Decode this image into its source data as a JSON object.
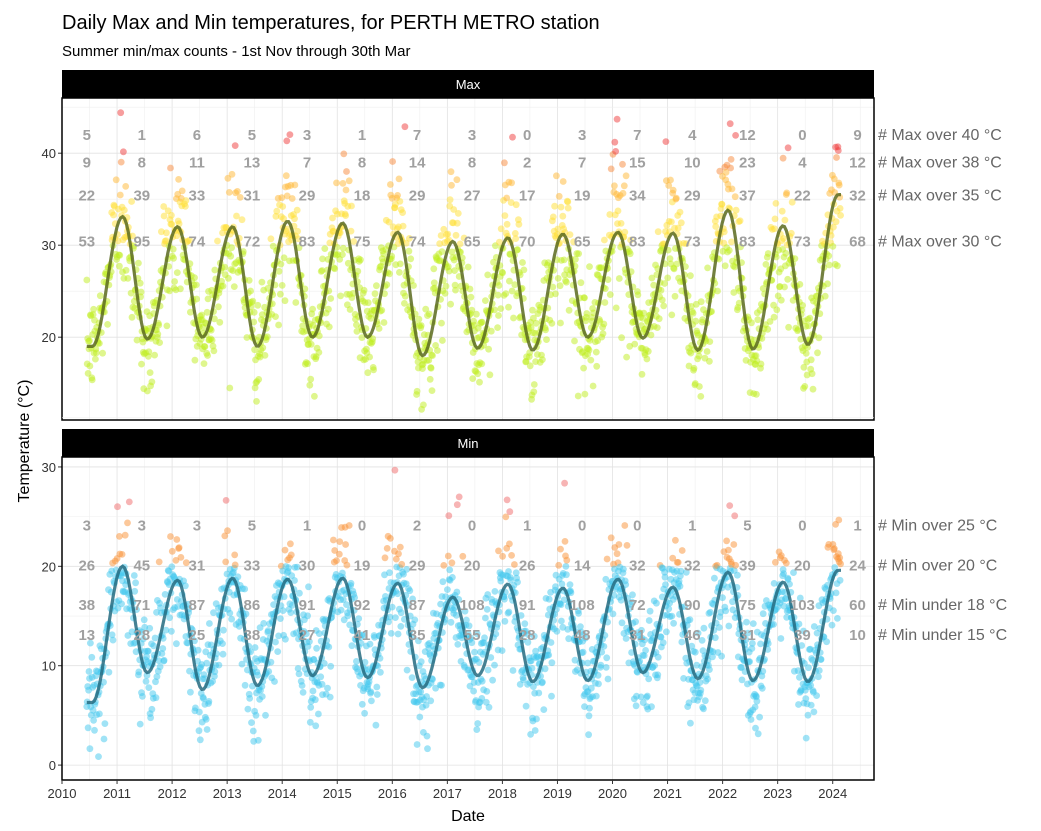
{
  "title": "Daily Max and Min temperatures, for PERTH METRO station",
  "subtitle": "Summer min/max counts - 1st Nov through 30th Mar",
  "ylabel": "Temperature (°C)",
  "xlabel": "Date",
  "colors": {
    "max_over_40": "#f03b3b",
    "max_over_38": "#f88a3c",
    "max_over_35": "#ffb733",
    "max_over_30": "#ffe033",
    "max_base": "#bfee1e",
    "max_line": "#5b6a1e",
    "min_over_25": "#f06a6a",
    "min_over_20": "#f99236",
    "min_base": "#41c8ee",
    "min_below_0": "#5a78f0",
    "min_line": "#256b80",
    "count_text": "#a0a0a0",
    "strip": "#000000"
  },
  "chart_data": [
    {
      "type": "scatter",
      "panel": "Max",
      "xlim": [
        "2010-01",
        "2024-10"
      ],
      "ylim": [
        11,
        46
      ],
      "yticks": [
        20,
        30,
        40
      ],
      "seasonal": {
        "start_year": 2010.45,
        "end_year": 2024.15,
        "summer_peaks": [
          33.1,
          32.0,
          32.0,
          32.6,
          32.4,
          31.4,
          30.4,
          30.8,
          31.2,
          31.4,
          31.3,
          33.8,
          32.1,
          35.5
        ],
        "winter_troughs": [
          19.0,
          19.8,
          20.0,
          19.0,
          20.0,
          20.0,
          18.0,
          18.8,
          18.6,
          20.0,
          19.9,
          18.6,
          18.7,
          19.2
        ]
      },
      "count_levels": [
        {
          "label": "# Max over 40 °C",
          "y": 42.1,
          "counts": [
            "5",
            "1",
            "6",
            "5",
            "3",
            "1",
            "7",
            "3",
            "0",
            "3",
            "7",
            "4",
            "12",
            "0",
            "9"
          ]
        },
        {
          "label": "# Max over 38 °C",
          "y": 39.1,
          "counts": [
            "9",
            "8",
            "11",
            "13",
            "7",
            "8",
            "14",
            "8",
            "2",
            "7",
            "15",
            "10",
            "23",
            "4",
            "12"
          ]
        },
        {
          "label": "# Max over 35 °C",
          "y": 35.5,
          "counts": [
            "22",
            "39",
            "33",
            "31",
            "29",
            "18",
            "29",
            "27",
            "17",
            "19",
            "34",
            "29",
            "37",
            "22",
            "32"
          ]
        },
        {
          "label": "# Max over 30 °C",
          "y": 30.5,
          "counts": [
            "53",
            "95",
            "74",
            "72",
            "83",
            "75",
            "74",
            "65",
            "70",
            "65",
            "83",
            "73",
            "83",
            "73",
            "68"
          ]
        }
      ]
    },
    {
      "type": "scatter",
      "panel": "Min",
      "xlim": [
        "2010-01",
        "2024-10"
      ],
      "ylim": [
        -1.5,
        31
      ],
      "yticks": [
        0,
        10,
        20,
        30
      ],
      "seasonal": {
        "start_year": 2010.45,
        "end_year": 2024.15,
        "summer_peaks": [
          20.0,
          18.6,
          18.8,
          18.7,
          18.8,
          18.3,
          16.9,
          18.2,
          17.8,
          18.7,
          17.9,
          19.4,
          18.4,
          19.6
        ],
        "winter_troughs": [
          6.3,
          9.3,
          7.6,
          8.0,
          9.0,
          8.8,
          7.8,
          9.0,
          8.4,
          8.5,
          9.3,
          8.7,
          8.5,
          8.4
        ]
      },
      "count_levels": [
        {
          "label": "# Min over 25 °C",
          "y": 24.2,
          "counts": [
            "3",
            "3",
            "3",
            "5",
            "1",
            "0",
            "2",
            "0",
            "1",
            "0",
            "0",
            "1",
            "5",
            "0",
            "1"
          ]
        },
        {
          "label": "# Min over 20 °C",
          "y": 20.2,
          "counts": [
            "26",
            "45",
            "31",
            "33",
            "30",
            "19",
            "29",
            "20",
            "26",
            "14",
            "32",
            "32",
            "39",
            "20",
            "24"
          ]
        },
        {
          "label": "# Min under 18 °C",
          "y": 16.2,
          "counts": [
            "38",
            "71",
            "87",
            "86",
            "91",
            "92",
            "87",
            "108",
            "91",
            "108",
            "72",
            "90",
            "75",
            "103",
            "60"
          ]
        },
        {
          "label": "# Min under 15 °C",
          "y": 13.2,
          "counts": [
            "13",
            "28",
            "25",
            "38",
            "27",
            "41",
            "35",
            "55",
            "28",
            "48",
            "31",
            "46",
            "31",
            "39",
            "10"
          ]
        }
      ]
    }
  ],
  "x_axis": {
    "ticks": [
      "2010",
      "2011",
      "2012",
      "2013",
      "2014",
      "2015",
      "2016",
      "2017",
      "2018",
      "2019",
      "2020",
      "2021",
      "2022",
      "2023",
      "2024"
    ]
  }
}
